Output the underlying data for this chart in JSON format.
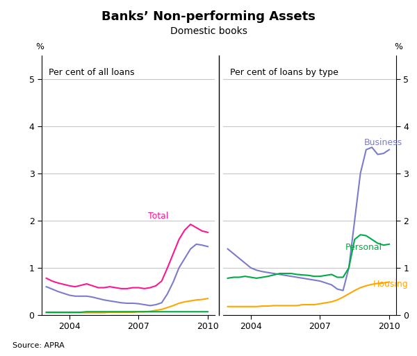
{
  "title": "Banks’ Non-performing Assets",
  "subtitle": "Domestic books",
  "left_panel_label": "Per cent of all loans",
  "right_panel_label": "Per cent of loans by type",
  "ylabel_left": "%",
  "ylabel_right": "%",
  "source": "Source: APRA",
  "ylim": [
    0,
    5.5
  ],
  "yticks": [
    0,
    1,
    2,
    3,
    4,
    5
  ],
  "background_color": "#ffffff",
  "grid_color": "#c8c8c8",
  "left_total_color": "#ff1493",
  "left_business_color": "#7b7bcc",
  "left_housing_color": "#ffa500",
  "left_personal_color": "#00aa44",
  "right_business_color": "#7b7bcc",
  "right_personal_color": "#00aa44",
  "right_housing_color": "#ffa500",
  "time_left": [
    2003.0,
    2003.25,
    2003.5,
    2003.75,
    2004.0,
    2004.25,
    2004.5,
    2004.75,
    2005.0,
    2005.25,
    2005.5,
    2005.75,
    2006.0,
    2006.25,
    2006.5,
    2006.75,
    2007.0,
    2007.25,
    2007.5,
    2007.75,
    2008.0,
    2008.25,
    2008.5,
    2008.75,
    2009.0,
    2009.25,
    2009.5,
    2009.75,
    2010.0
  ],
  "left_total": [
    0.78,
    0.72,
    0.68,
    0.65,
    0.62,
    0.6,
    0.63,
    0.66,
    0.62,
    0.58,
    0.58,
    0.6,
    0.58,
    0.56,
    0.56,
    0.58,
    0.58,
    0.56,
    0.58,
    0.62,
    0.72,
    1.0,
    1.3,
    1.6,
    1.8,
    1.92,
    1.85,
    1.78,
    1.75
  ],
  "left_business": [
    0.6,
    0.55,
    0.5,
    0.46,
    0.42,
    0.4,
    0.4,
    0.4,
    0.38,
    0.35,
    0.32,
    0.3,
    0.28,
    0.26,
    0.25,
    0.25,
    0.24,
    0.22,
    0.2,
    0.22,
    0.26,
    0.45,
    0.7,
    1.0,
    1.2,
    1.4,
    1.5,
    1.48,
    1.45
  ],
  "left_housing": [
    0.05,
    0.05,
    0.05,
    0.05,
    0.05,
    0.05,
    0.05,
    0.05,
    0.05,
    0.05,
    0.05,
    0.06,
    0.06,
    0.06,
    0.06,
    0.06,
    0.07,
    0.07,
    0.08,
    0.1,
    0.12,
    0.16,
    0.2,
    0.25,
    0.28,
    0.3,
    0.32,
    0.33,
    0.35
  ],
  "left_personal": [
    0.06,
    0.06,
    0.06,
    0.06,
    0.06,
    0.06,
    0.06,
    0.07,
    0.07,
    0.07,
    0.07,
    0.07,
    0.07,
    0.07,
    0.07,
    0.07,
    0.07,
    0.07,
    0.07,
    0.07,
    0.07,
    0.07,
    0.07,
    0.07,
    0.07,
    0.07,
    0.07,
    0.07,
    0.07
  ],
  "time_right": [
    2003.0,
    2003.25,
    2003.5,
    2003.75,
    2004.0,
    2004.25,
    2004.5,
    2004.75,
    2005.0,
    2005.25,
    2005.5,
    2005.75,
    2006.0,
    2006.25,
    2006.5,
    2006.75,
    2007.0,
    2007.25,
    2007.5,
    2007.75,
    2008.0,
    2008.25,
    2008.5,
    2008.75,
    2009.0,
    2009.25,
    2009.5,
    2009.75,
    2010.0
  ],
  "right_business": [
    1.4,
    1.3,
    1.2,
    1.1,
    1.0,
    0.95,
    0.92,
    0.9,
    0.88,
    0.86,
    0.84,
    0.82,
    0.8,
    0.78,
    0.76,
    0.74,
    0.72,
    0.68,
    0.64,
    0.55,
    0.52,
    1.0,
    2.0,
    3.0,
    3.5,
    3.55,
    3.4,
    3.42,
    3.5
  ],
  "right_personal": [
    0.78,
    0.8,
    0.8,
    0.82,
    0.8,
    0.78,
    0.8,
    0.82,
    0.85,
    0.88,
    0.88,
    0.88,
    0.86,
    0.85,
    0.84,
    0.82,
    0.82,
    0.84,
    0.86,
    0.8,
    0.8,
    1.0,
    1.6,
    1.7,
    1.68,
    1.6,
    1.52,
    1.48,
    1.5
  ],
  "right_housing": [
    0.18,
    0.18,
    0.18,
    0.18,
    0.18,
    0.18,
    0.19,
    0.19,
    0.2,
    0.2,
    0.2,
    0.2,
    0.2,
    0.22,
    0.22,
    0.22,
    0.24,
    0.26,
    0.28,
    0.32,
    0.38,
    0.45,
    0.52,
    0.58,
    0.62,
    0.65,
    0.67,
    0.68,
    0.7
  ],
  "xticks": [
    2004,
    2007,
    2010
  ],
  "xlim_left": [
    2002.8,
    2010.3
  ],
  "xlim_right": [
    2002.8,
    2010.3
  ]
}
